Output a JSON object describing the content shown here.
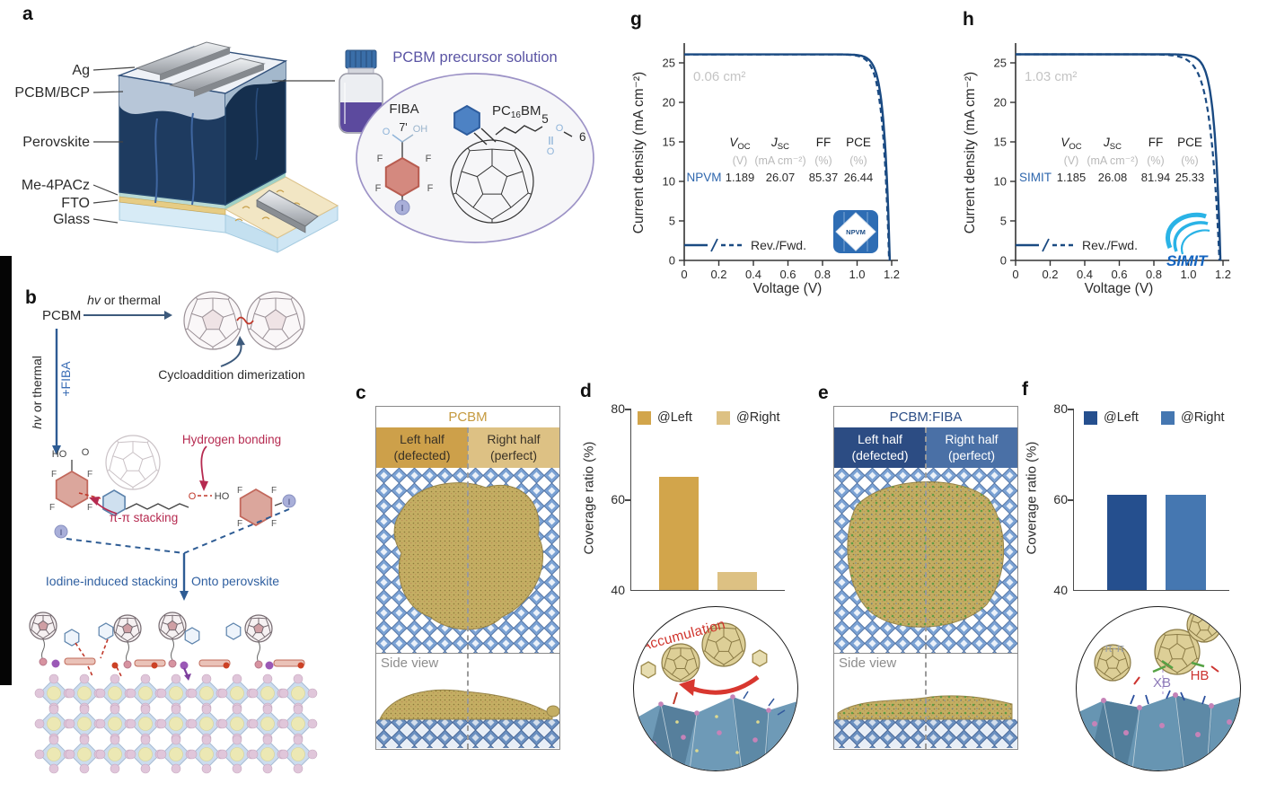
{
  "figure": {
    "panel_letters": {
      "a": "a",
      "b": "b",
      "c": "c",
      "d": "d",
      "e": "e",
      "f": "f",
      "g": "g",
      "h": "h"
    }
  },
  "panel_a": {
    "layers": [
      "Ag",
      "PCBM/BCP",
      "Perovskite",
      "Me-4PACz",
      "FTO",
      "Glass"
    ],
    "solution_title": "PCBM precursor solution",
    "fiba": {
      "name": "FIBA",
      "o": "O",
      "pos": "7'",
      "oh": "OH",
      "f": "F",
      "i": "I"
    },
    "pc16bm": {
      "p1": "PC",
      "sub": "16",
      "p2": "BM",
      "c5": "5",
      "c6": "6",
      "o_ester": "O",
      "o_carbonyl": "O"
    }
  },
  "panel_b": {
    "pcbm": "PCBM",
    "hv": "hv",
    "or_thermal": " or thermal",
    "plus_fiba": "+FIBA",
    "cycloaddition": "Cycloaddition dimerization",
    "hydrogen_bonding": "Hydrogen bonding",
    "pi_pi_stacking": "π-π stacking",
    "iodine_stacking": "Iodine-induced stacking",
    "onto_perovskite": "Onto perovskite",
    "ho": "HO",
    "o": "O",
    "oh": "HO",
    "f": "F",
    "i": "I"
  },
  "panel_c": {
    "title": "PCBM",
    "left_line1": "Left half",
    "left_line2": "(defected)",
    "right_line1": "Right half",
    "right_line2": "(perfect)",
    "side_view": "Side view"
  },
  "panel_e": {
    "title": "PCBM:FIBA",
    "left_line1": "Left half",
    "left_line2": "(defected)",
    "right_line1": "Right half",
    "right_line2": "(perfect)",
    "side_view": "Side view"
  },
  "colors": {
    "curve_navy": "#1a4a82",
    "gold_dark": "#cda04a",
    "gold_light": "#ddc184",
    "navy_dark": "#2c4c83",
    "blue_mid": "#4a70a6",
    "crimson": "#b62a50",
    "blue_label": "#2f5fa0",
    "purple_title": "#5a54a4",
    "gray_text": "#b9b9b9"
  },
  "chart_data": [
    {
      "id": "d",
      "type": "bar",
      "ylabel": "Coverage ratio (%)",
      "categories": [
        "@Left",
        "@Right"
      ],
      "values": [
        65,
        44
      ],
      "ylim": [
        40,
        80
      ],
      "yticks": [
        "40",
        "60",
        "80"
      ],
      "bar_colors": [
        "#d2a54b",
        "#ddc183"
      ],
      "legend": [
        {
          "label": "@Left",
          "color": "#d2a54b"
        },
        {
          "label": "@Right",
          "color": "#ddc183"
        }
      ],
      "inset_annotation": "Accumulation"
    },
    {
      "id": "f",
      "type": "bar",
      "ylabel": "Coverage ratio (%)",
      "categories": [
        "@Left",
        "@Right"
      ],
      "values": [
        61,
        61
      ],
      "ylim": [
        40,
        80
      ],
      "yticks": [
        "40",
        "60",
        "80"
      ],
      "bar_colors": [
        "#254f8e",
        "#4577b1"
      ],
      "legend": [
        {
          "label": "@Left",
          "color": "#254f8e"
        },
        {
          "label": "@Right",
          "color": "#4577b1"
        }
      ],
      "inset_annotations": [
        "π-π",
        "XB",
        "HB"
      ]
    },
    {
      "id": "g",
      "type": "line",
      "subtype": "jv_curve",
      "area_label": "0.06 cm²",
      "xlabel": "Voltage (V)",
      "ylabel": "Current density (mA cm⁻²)",
      "xlim": [
        0,
        1.2
      ],
      "ylim": [
        0,
        27
      ],
      "xticks": [
        "0",
        "0.2",
        "0.4",
        "0.6",
        "0.8",
        "1.0",
        "1.2"
      ],
      "yticks": [
        "0",
        "5",
        "10",
        "15",
        "20",
        "25"
      ],
      "legend": "Rev./Fwd.",
      "series": [
        {
          "name": "Rev",
          "style": "solid"
        },
        {
          "name": "Fwd",
          "style": "dashed"
        }
      ],
      "device": "NPVM",
      "voc_v": 1.189,
      "jsc_ma_cm2": 26.07,
      "ff_pct": 85.37,
      "pce_pct": 26.44,
      "table": {
        "headers": {
          "voc_main": "V",
          "voc_sub": "OC",
          "jsc_main": "J",
          "jsc_sub": "SC",
          "ff": "FF",
          "pce": "PCE"
        },
        "units": {
          "voc": "(V)",
          "jsc": "(mA cm⁻²)",
          "ff": "(%)",
          "pce": "(%)"
        },
        "row_label": "NPVM",
        "values": [
          "1.189",
          "26.07",
          "85.37",
          "26.44"
        ]
      },
      "logo": "NPVM",
      "curve_color": "#1a4a82"
    },
    {
      "id": "h",
      "type": "line",
      "subtype": "jv_curve",
      "area_label": "1.03 cm²",
      "xlabel": "Voltage (V)",
      "ylabel": "Current density (mA cm⁻²)",
      "xlim": [
        0,
        1.2
      ],
      "ylim": [
        0,
        27
      ],
      "xticks": [
        "0",
        "0.2",
        "0.4",
        "0.6",
        "0.8",
        "1.0",
        "1.2"
      ],
      "yticks": [
        "0",
        "5",
        "10",
        "15",
        "20",
        "25"
      ],
      "legend": "Rev./Fwd.",
      "series": [
        {
          "name": "Rev",
          "style": "solid"
        },
        {
          "name": "Fwd",
          "style": "dashed"
        }
      ],
      "device": "SIMIT",
      "voc_v": 1.185,
      "jsc_ma_cm2": 26.08,
      "ff_pct": 81.94,
      "pce_pct": 25.33,
      "table": {
        "headers": {
          "voc_main": "V",
          "voc_sub": "OC",
          "jsc_main": "J",
          "jsc_sub": "SC",
          "ff": "FF",
          "pce": "PCE"
        },
        "units": {
          "voc": "(V)",
          "jsc": "(mA cm⁻²)",
          "ff": "(%)",
          "pce": "(%)"
        },
        "row_label": "SIMIT",
        "values": [
          "1.185",
          "26.08",
          "81.94",
          "25.33"
        ]
      },
      "logo": "SIMIT",
      "curve_color": "#1a4a82"
    }
  ]
}
